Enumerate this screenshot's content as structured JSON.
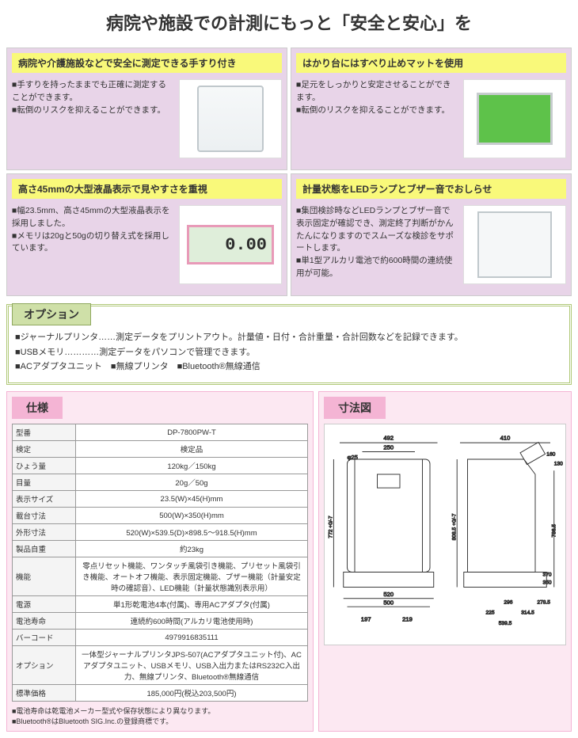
{
  "page_title": "病院や施設での計測にもっと「安全と安心」を",
  "features": [
    {
      "header": "病院や介護施設などで安全に測定できる手すり付き",
      "text": "■手すりを持ったままでも正確に測定することができます。\n■転倒のリスクを抑えることができます。",
      "lcd": null
    },
    {
      "header": "はかり台にはすべり止めマットを使用",
      "text": "■足元をしっかりと安定させることができます。\n■転倒のリスクを抑えることができます。",
      "lcd": null
    },
    {
      "header": "高さ45mmの大型液晶表示で見やすさを重視",
      "text": "■幅23.5mm、高さ45mmの大型液晶表示を採用しました。\n■メモリは20gと50gの切り替え式を採用しています。",
      "lcd": "0.00"
    },
    {
      "header": "計量状態をLEDランプとブザー音でおしらせ",
      "text": "■集団検診時などLEDランプとブザー音で表示固定が確認でき、測定終了判断がかんたんになりますのでスムーズな検診をサポートします。\n■単1型アルカリ電池で約600時間の連続使用が可能。",
      "lcd": null
    }
  ],
  "option": {
    "label": "オプション",
    "body": "■ジャーナルプリンタ……測定データをプリントアウト。計量値・日付・合計重量・合計回数などを記録できます。\n■USBメモリ…………測定データをパソコンで管理できます。\n■ACアダプタユニット　■無線プリンタ　■Bluetooth®無線通信"
  },
  "spec": {
    "title": "仕様",
    "rows": [
      {
        "label": "型番",
        "value": "DP-7800PW-T"
      },
      {
        "label": "検定",
        "value": "検定品"
      },
      {
        "label": "ひょう量",
        "value": "120kg／150kg"
      },
      {
        "label": "目量",
        "value": "20g／50g"
      },
      {
        "label": "表示サイズ",
        "value": "23.5(W)×45(H)mm"
      },
      {
        "label": "載台寸法",
        "value": "500(W)×350(H)mm"
      },
      {
        "label": "外形寸法",
        "value": "520(W)×539.5(D)×898.5～918.5(H)mm"
      },
      {
        "label": "製品自重",
        "value": "約23kg"
      },
      {
        "label": "機能",
        "value": "零点リセット機能、ワンタッチ風袋引き機能、プリセット風袋引き機能、オートオフ機能、表示固定機能、ブザー機能（計量安定時の確認音）、LED機能（計量状態識別表示用）"
      },
      {
        "label": "電源",
        "value": "単1形乾電池4本(付属)、専用ACアダプタ(付属)"
      },
      {
        "label": "電池寿命",
        "value": "連続約600時間(アルカリ電池使用時)"
      },
      {
        "label": "バーコード",
        "value": "4979916835111"
      },
      {
        "label": "オプション",
        "value": "一体型ジャーナルプリンタJPS-507(ACアダプタユニット付)、ACアダプタユニット、USBメモリ、USB入出力またはRS232C入出力、無線プリンタ、Bluetooth®無線通信"
      },
      {
        "label": "標準価格",
        "value": "185,000円(税込203,500円)"
      }
    ],
    "notes": "■電池寿命は乾電池メーカー型式や保存状態により異なります。\n■Bluetooth®はBluetooth SIG.Inc.の登録商標です。"
  },
  "dimensions": {
    "title": "寸法図",
    "values": {
      "width_top1": "492",
      "width_top_inner": "250",
      "width_top2": "410",
      "diam": "φ25",
      "height_left": "772 +0/-7",
      "height_right_inner": "808.5 +0/-7",
      "height_platform": "786.5",
      "corner1": "160",
      "corner2": "130",
      "platform_w": "520",
      "platform_d": "500",
      "right_370": "370",
      "right_350": "350",
      "bottom_left_a": "197",
      "bottom_left_b": "219",
      "bottom_right_a": "296",
      "bottom_right_b": "278.5",
      "bottom_right_c": "225",
      "bottom_right_d": "314.5",
      "bottom_right_e": "539.5"
    }
  }
}
